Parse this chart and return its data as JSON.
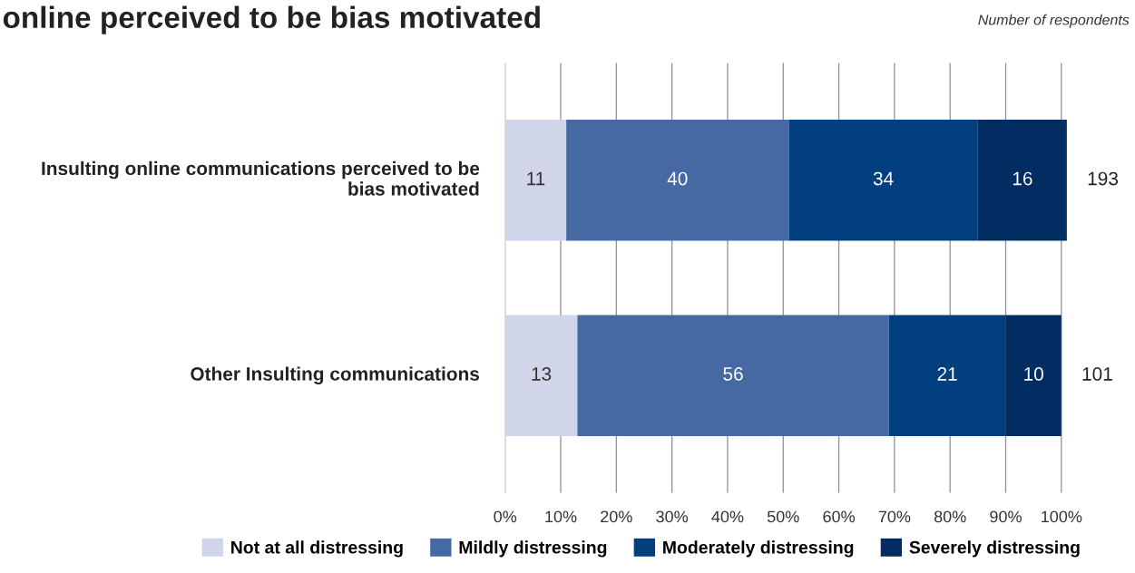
{
  "chart_data": {
    "type": "bar",
    "orientation": "horizontal",
    "stacked": true,
    "title": "online perceived to be bias motivated",
    "annotations": [
      "Number of respondents",
      {
        "text": "193",
        "x": 101,
        "y": "Insulting online communications perceived to be bias motivated"
      },
      {
        "text": "101",
        "x": 100,
        "y": "Other Insulting communications"
      }
    ],
    "categories": [
      "Insulting online communications perceived to be bias motivated",
      "Other Insulting communications"
    ],
    "series": [
      {
        "name": "Not at all distressing",
        "color": "#d0d5ea",
        "values": [
          11,
          13
        ]
      },
      {
        "name": "Mildly distressing",
        "color": "#4769a3",
        "values": [
          40,
          56
        ]
      },
      {
        "name": "Moderately distressing",
        "color": "#023f7e",
        "values": [
          34,
          21
        ]
      },
      {
        "name": "Severely distressing",
        "color": "#022d62",
        "values": [
          16,
          10
        ]
      }
    ],
    "data_labels": true,
    "xlim": [
      0,
      101
    ],
    "xticks": [
      {
        "value": 0,
        "label": "0%"
      },
      {
        "value": 10,
        "label": "10%"
      },
      {
        "value": 20,
        "label": "20%"
      },
      {
        "value": 30,
        "label": "30%"
      },
      {
        "value": 40,
        "label": "40%"
      },
      {
        "value": 50,
        "label": "50%"
      },
      {
        "value": 60,
        "label": "60%"
      },
      {
        "value": 70,
        "label": "70%"
      },
      {
        "value": 80,
        "label": "80%"
      },
      {
        "value": 90,
        "label": "90%"
      },
      {
        "value": 100,
        "label": "100%"
      }
    ],
    "grid": "x",
    "legend": "bottom"
  }
}
